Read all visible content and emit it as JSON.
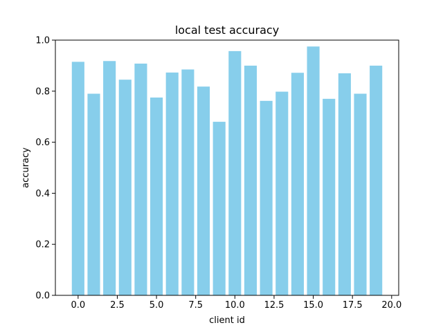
{
  "chart_data": {
    "type": "bar",
    "title": "local test accuracy",
    "xlabel": "client id",
    "ylabel": "accuracy",
    "bar_color": "#87ceeb",
    "x": [
      0,
      1,
      2,
      3,
      4,
      5,
      6,
      7,
      8,
      9,
      10,
      11,
      12,
      13,
      14,
      15,
      16,
      17,
      18,
      19
    ],
    "values": [
      0.915,
      0.79,
      0.918,
      0.845,
      0.908,
      0.775,
      0.873,
      0.885,
      0.818,
      0.68,
      0.957,
      0.9,
      0.762,
      0.798,
      0.872,
      0.975,
      0.77,
      0.87,
      0.79,
      0.9
    ],
    "xlim": [
      -1.45,
      20.45
    ],
    "ylim": [
      0.0,
      1.0
    ],
    "xticks": [
      0.0,
      2.5,
      5.0,
      7.5,
      10.0,
      12.5,
      15.0,
      17.5,
      20.0
    ],
    "xtick_labels": [
      "0.0",
      "2.5",
      "5.0",
      "7.5",
      "10.0",
      "12.5",
      "15.0",
      "17.5",
      "20.0"
    ],
    "yticks": [
      0.0,
      0.2,
      0.4,
      0.6,
      0.8,
      1.0
    ],
    "ytick_labels": [
      "0.0",
      "0.2",
      "0.4",
      "0.6",
      "0.8",
      "1.0"
    ],
    "grid": false,
    "legend": false
  }
}
